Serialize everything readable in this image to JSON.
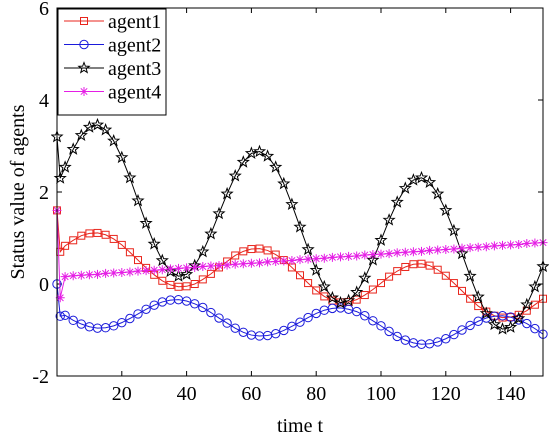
{
  "chart_data": {
    "type": "line",
    "xlabel": "time t",
    "ylabel": "Status value of agents",
    "xlim": [
      0,
      150
    ],
    "ylim": [
      -2,
      6
    ],
    "xticks": [
      20,
      40,
      60,
      80,
      100,
      120,
      140
    ],
    "yticks": [
      -2,
      0,
      2,
      4,
      6
    ],
    "legend": "upper left",
    "x": [
      0,
      1,
      2.5,
      5,
      7.5,
      10,
      12.5,
      15,
      17.5,
      20,
      22.5,
      25,
      27.5,
      30,
      32.5,
      35,
      37.5,
      40,
      42.5,
      45,
      47.5,
      50,
      52.5,
      55,
      57.5,
      60,
      62.5,
      65,
      67.5,
      70,
      72.5,
      75,
      77.5,
      80,
      82.5,
      85,
      87.5,
      90,
      92.5,
      95,
      97.5,
      100,
      102.5,
      105,
      107.5,
      110,
      112.5,
      115,
      117.5,
      120,
      122.5,
      125,
      127.5,
      130,
      132.5,
      135,
      137.5,
      140,
      142.5,
      145,
      147.5,
      150
    ],
    "series": [
      {
        "name": "agent1",
        "color": "#e8251c",
        "marker": "square",
        "values": [
          1.6,
          0.7,
          0.83,
          0.95,
          1.05,
          1.1,
          1.11,
          1.07,
          0.98,
          0.85,
          0.69,
          0.52,
          0.35,
          0.2,
          0.07,
          -0.02,
          -0.06,
          -0.05,
          0.0,
          0.1,
          0.22,
          0.36,
          0.49,
          0.62,
          0.71,
          0.76,
          0.77,
          0.73,
          0.64,
          0.52,
          0.36,
          0.19,
          0.02,
          -0.14,
          -0.27,
          -0.36,
          -0.4,
          -0.39,
          -0.34,
          -0.24,
          -0.12,
          0.02,
          0.16,
          0.28,
          0.37,
          0.43,
          0.44,
          0.4,
          0.31,
          0.18,
          0.02,
          -0.15,
          -0.32,
          -0.48,
          -0.6,
          -0.69,
          -0.73,
          -0.72,
          -0.67,
          -0.58,
          -0.45,
          -0.32
        ]
      },
      {
        "name": "agent2",
        "color": "#1a1adb",
        "marker": "circle",
        "values": [
          0,
          -0.7,
          -0.68,
          -0.79,
          -0.87,
          -0.93,
          -0.96,
          -0.95,
          -0.91,
          -0.84,
          -0.75,
          -0.65,
          -0.55,
          -0.46,
          -0.39,
          -0.35,
          -0.34,
          -0.37,
          -0.43,
          -0.51,
          -0.62,
          -0.74,
          -0.85,
          -0.96,
          -1.05,
          -1.11,
          -1.13,
          -1.12,
          -1.08,
          -1.01,
          -0.92,
          -0.83,
          -0.73,
          -0.64,
          -0.57,
          -0.53,
          -0.52,
          -0.55,
          -0.6,
          -0.69,
          -0.8,
          -0.91,
          -1.03,
          -1.14,
          -1.22,
          -1.28,
          -1.31,
          -1.3,
          -1.26,
          -1.19,
          -1.1,
          -1.0,
          -0.9,
          -0.81,
          -0.74,
          -0.7,
          -0.69,
          -0.72,
          -0.78,
          -0.86,
          -0.97,
          -1.09
        ]
      },
      {
        "name": "agent3",
        "color": "#000000",
        "marker": "star",
        "values": [
          3.2,
          2.3,
          2.54,
          2.93,
          3.23,
          3.41,
          3.46,
          3.35,
          3.11,
          2.75,
          2.31,
          1.81,
          1.32,
          0.87,
          0.51,
          0.27,
          0.17,
          0.21,
          0.4,
          0.7,
          1.09,
          1.53,
          1.96,
          2.35,
          2.65,
          2.84,
          2.88,
          2.78,
          2.54,
          2.18,
          1.73,
          1.24,
          0.75,
          0.3,
          -0.06,
          -0.3,
          -0.41,
          -0.36,
          -0.18,
          0.13,
          0.52,
          0.95,
          1.39,
          1.78,
          2.08,
          2.26,
          2.31,
          2.21,
          1.96,
          1.6,
          1.16,
          0.66,
          0.17,
          -0.28,
          -0.64,
          -0.88,
          -0.98,
          -0.94,
          -0.75,
          -0.45,
          -0.06,
          0.38
        ]
      },
      {
        "name": "agent4",
        "color": "#e51ee5",
        "marker": "asterisk",
        "values": [
          1.6,
          -0.3,
          0.16,
          0.18,
          0.19,
          0.2,
          0.21,
          0.23,
          0.24,
          0.25,
          0.26,
          0.28,
          0.29,
          0.3,
          0.31,
          0.33,
          0.34,
          0.35,
          0.36,
          0.38,
          0.39,
          0.4,
          0.41,
          0.43,
          0.44,
          0.45,
          0.46,
          0.48,
          0.49,
          0.5,
          0.51,
          0.53,
          0.54,
          0.55,
          0.56,
          0.58,
          0.59,
          0.6,
          0.61,
          0.63,
          0.64,
          0.65,
          0.66,
          0.68,
          0.69,
          0.7,
          0.71,
          0.73,
          0.74,
          0.75,
          0.76,
          0.78,
          0.79,
          0.8,
          0.81,
          0.83,
          0.84,
          0.85,
          0.86,
          0.88,
          0.89,
          0.9
        ]
      }
    ]
  }
}
